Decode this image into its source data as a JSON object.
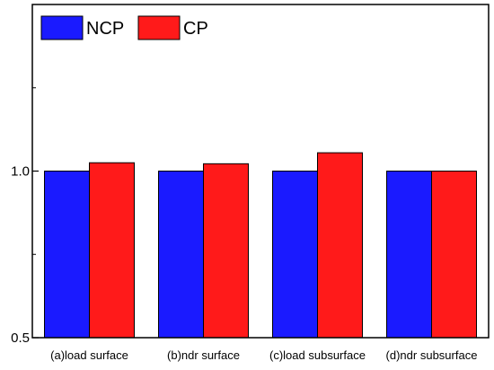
{
  "chart_data": {
    "type": "bar",
    "categories": [
      "(a)load surface",
      "(b)ndr surface",
      "(c)load subsurface",
      "(d)ndr subsurface"
    ],
    "series": [
      {
        "name": "NCP",
        "color": "#1a1aff",
        "values": [
          1.0,
          1.0,
          1.0,
          1.0
        ]
      },
      {
        "name": "CP",
        "color": "#ff1a1a",
        "values": [
          1.025,
          1.022,
          1.055,
          1.0
        ]
      }
    ],
    "yticks": [
      {
        "value": 0.5,
        "label": "0.5"
      },
      {
        "value": 1.0,
        "label": "1.0"
      }
    ],
    "ylim": [
      0.5,
      1.5
    ],
    "grid": false,
    "legend_position": "top-left",
    "title": "",
    "xlabel": "",
    "ylabel": ""
  }
}
